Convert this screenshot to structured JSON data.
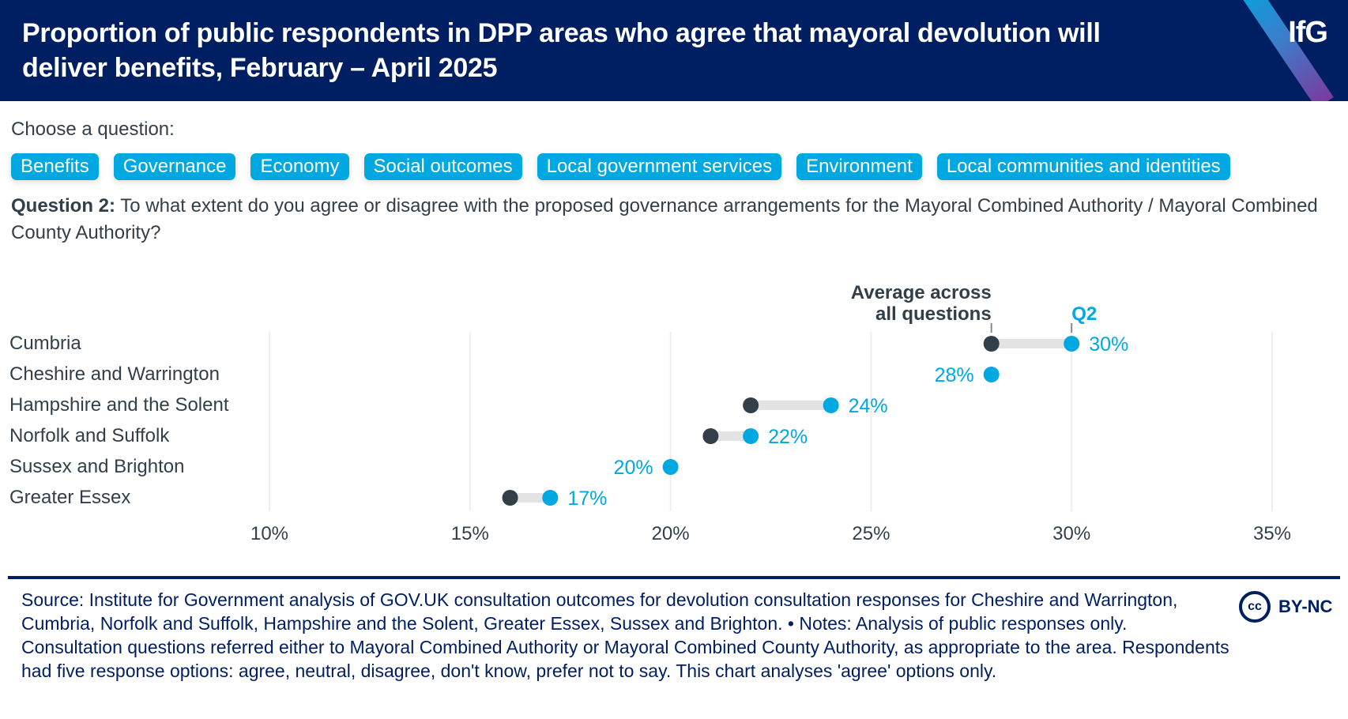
{
  "header": {
    "title": "Proportion of public respondents in DPP areas who agree that mayoral devolution will deliver benefits, February – April 2025",
    "logo": "IfG"
  },
  "controls": {
    "choose_label": "Choose a question:",
    "buttons": [
      {
        "label": "Benefits"
      },
      {
        "label": "Governance"
      },
      {
        "label": "Economy"
      },
      {
        "label": "Social outcomes"
      },
      {
        "label": "Local government services"
      },
      {
        "label": "Environment"
      },
      {
        "label": "Local communities and identities"
      }
    ]
  },
  "question": {
    "prefix": "Question 2:",
    "text": " To what extent do you agree or disagree with the proposed governance arrangements for the Mayoral Combined Authority / Mayoral Combined County Authority?"
  },
  "colors": {
    "brand_navy": "#001e62",
    "accent_blue": "#00a8e1",
    "average_dot": "#333f48",
    "connector": "#e3e3e3",
    "gridline": "#eeeeee"
  },
  "chart_data": {
    "type": "dumbbell",
    "title": "Proportion of public respondents in DPP areas who agree that mayoral devolution will deliver benefits, February – April 2025",
    "xlabel": "",
    "ylabel": "",
    "xlim": [
      10,
      35
    ],
    "xticks": [
      10,
      15,
      20,
      25,
      30,
      35
    ],
    "xtick_labels": [
      "10%",
      "15%",
      "20%",
      "25%",
      "30%",
      "35%"
    ],
    "grid": true,
    "annotations": {
      "average_label": "Average across all questions",
      "average_label_lines": [
        "Average across",
        "all questions"
      ],
      "question_label": "Q2"
    },
    "categories": [
      "Cumbria",
      "Cheshire and Warrington",
      "Hampshire and the Solent",
      "Norfolk and Suffolk",
      "Sussex and Brighton",
      "Greater Essex"
    ],
    "series": [
      {
        "name": "Average across all questions",
        "values": [
          28,
          28,
          22,
          21,
          20,
          16
        ]
      },
      {
        "name": "Q2",
        "values": [
          30,
          28,
          24,
          22,
          20,
          17
        ]
      }
    ],
    "data_labels": [
      "30%",
      "28%",
      "24%",
      "22%",
      "20%",
      "17%"
    ]
  },
  "footer": {
    "source": "Source: Institute for Government analysis of GOV.UK consultation outcomes for devolution consultation responses for Cheshire and Warrington, Cumbria, Norfolk and Suffolk, Hampshire and the Solent, Greater Essex, Sussex and Brighton. • Notes: Analysis of public responses only. Consultation questions referred either to Mayoral Combined Authority or Mayoral Combined County Authority, as appropriate to the area. Respondents had five response options: agree, neutral, disagree, don't know, prefer not to say. This chart analyses 'agree' options only.",
    "license_icon": "cc-icon",
    "license_icon_text": "cc",
    "license": "BY-NC"
  }
}
